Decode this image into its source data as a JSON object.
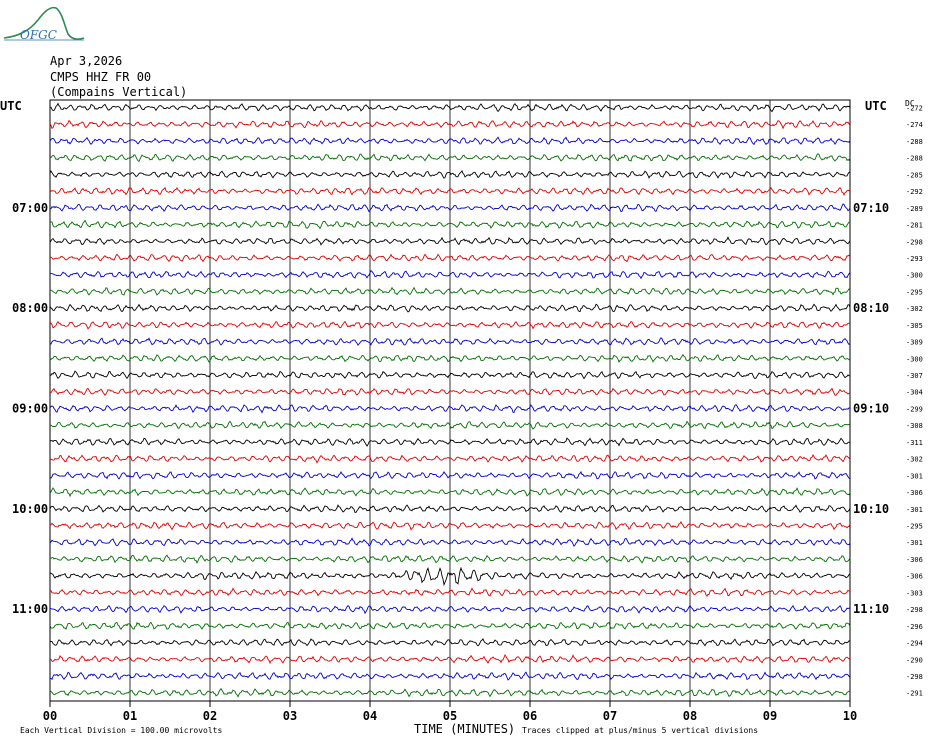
{
  "logo_text": "OFGC",
  "header": {
    "date": "Apr 3,2026",
    "station": "CMPS HHZ FR 00",
    "location": "(Compains Vertical)"
  },
  "chart_data": {
    "type": "line",
    "left_timezone": "UTC",
    "right_timezone": "UTC",
    "dc_label": "DC",
    "xlabel": "TIME (MINUTES)",
    "x_ticks": [
      "00",
      "01",
      "02",
      "03",
      "04",
      "05",
      "06",
      "07",
      "08",
      "09",
      "10"
    ],
    "xlim": [
      0,
      10
    ],
    "left_hour_labels": [
      {
        "row": 6,
        "label": "07:00"
      },
      {
        "row": 12,
        "label": "08:00"
      },
      {
        "row": 18,
        "label": "09:00"
      },
      {
        "row": 24,
        "label": "10:00"
      },
      {
        "row": 30,
        "label": "11:00"
      }
    ],
    "right_hour_labels": [
      {
        "row": 6,
        "label": "07:10"
      },
      {
        "row": 12,
        "label": "08:10"
      },
      {
        "row": 18,
        "label": "09:10"
      },
      {
        "row": 24,
        "label": "10:10"
      },
      {
        "row": 30,
        "label": "11:10"
      }
    ],
    "trace_colors": [
      "#000000",
      "#e00000",
      "#0000d0",
      "#007000"
    ],
    "dc_offsets": [
      "-272",
      "-274",
      "-288",
      "-288",
      "-285",
      "-292",
      "-289",
      "-281",
      "-298",
      "-293",
      "-300",
      "-295",
      "-302",
      "-305",
      "-309",
      "-300",
      "-307",
      "-304",
      "-299",
      "-308",
      "-311",
      "-302",
      "-301",
      "-306",
      "-301",
      "-295",
      "-301",
      "-306",
      "-306",
      "-303",
      "-298",
      "-296",
      "-294",
      "-290",
      "-298",
      "-291"
    ],
    "event": {
      "row": 28,
      "start_minute": 4.2,
      "end_minute": 6.0
    },
    "footer_left": "Each Vertical Division =  100.00 microvolts",
    "footer_right": "Traces clipped at plus/minus 5 vertical divisions"
  }
}
